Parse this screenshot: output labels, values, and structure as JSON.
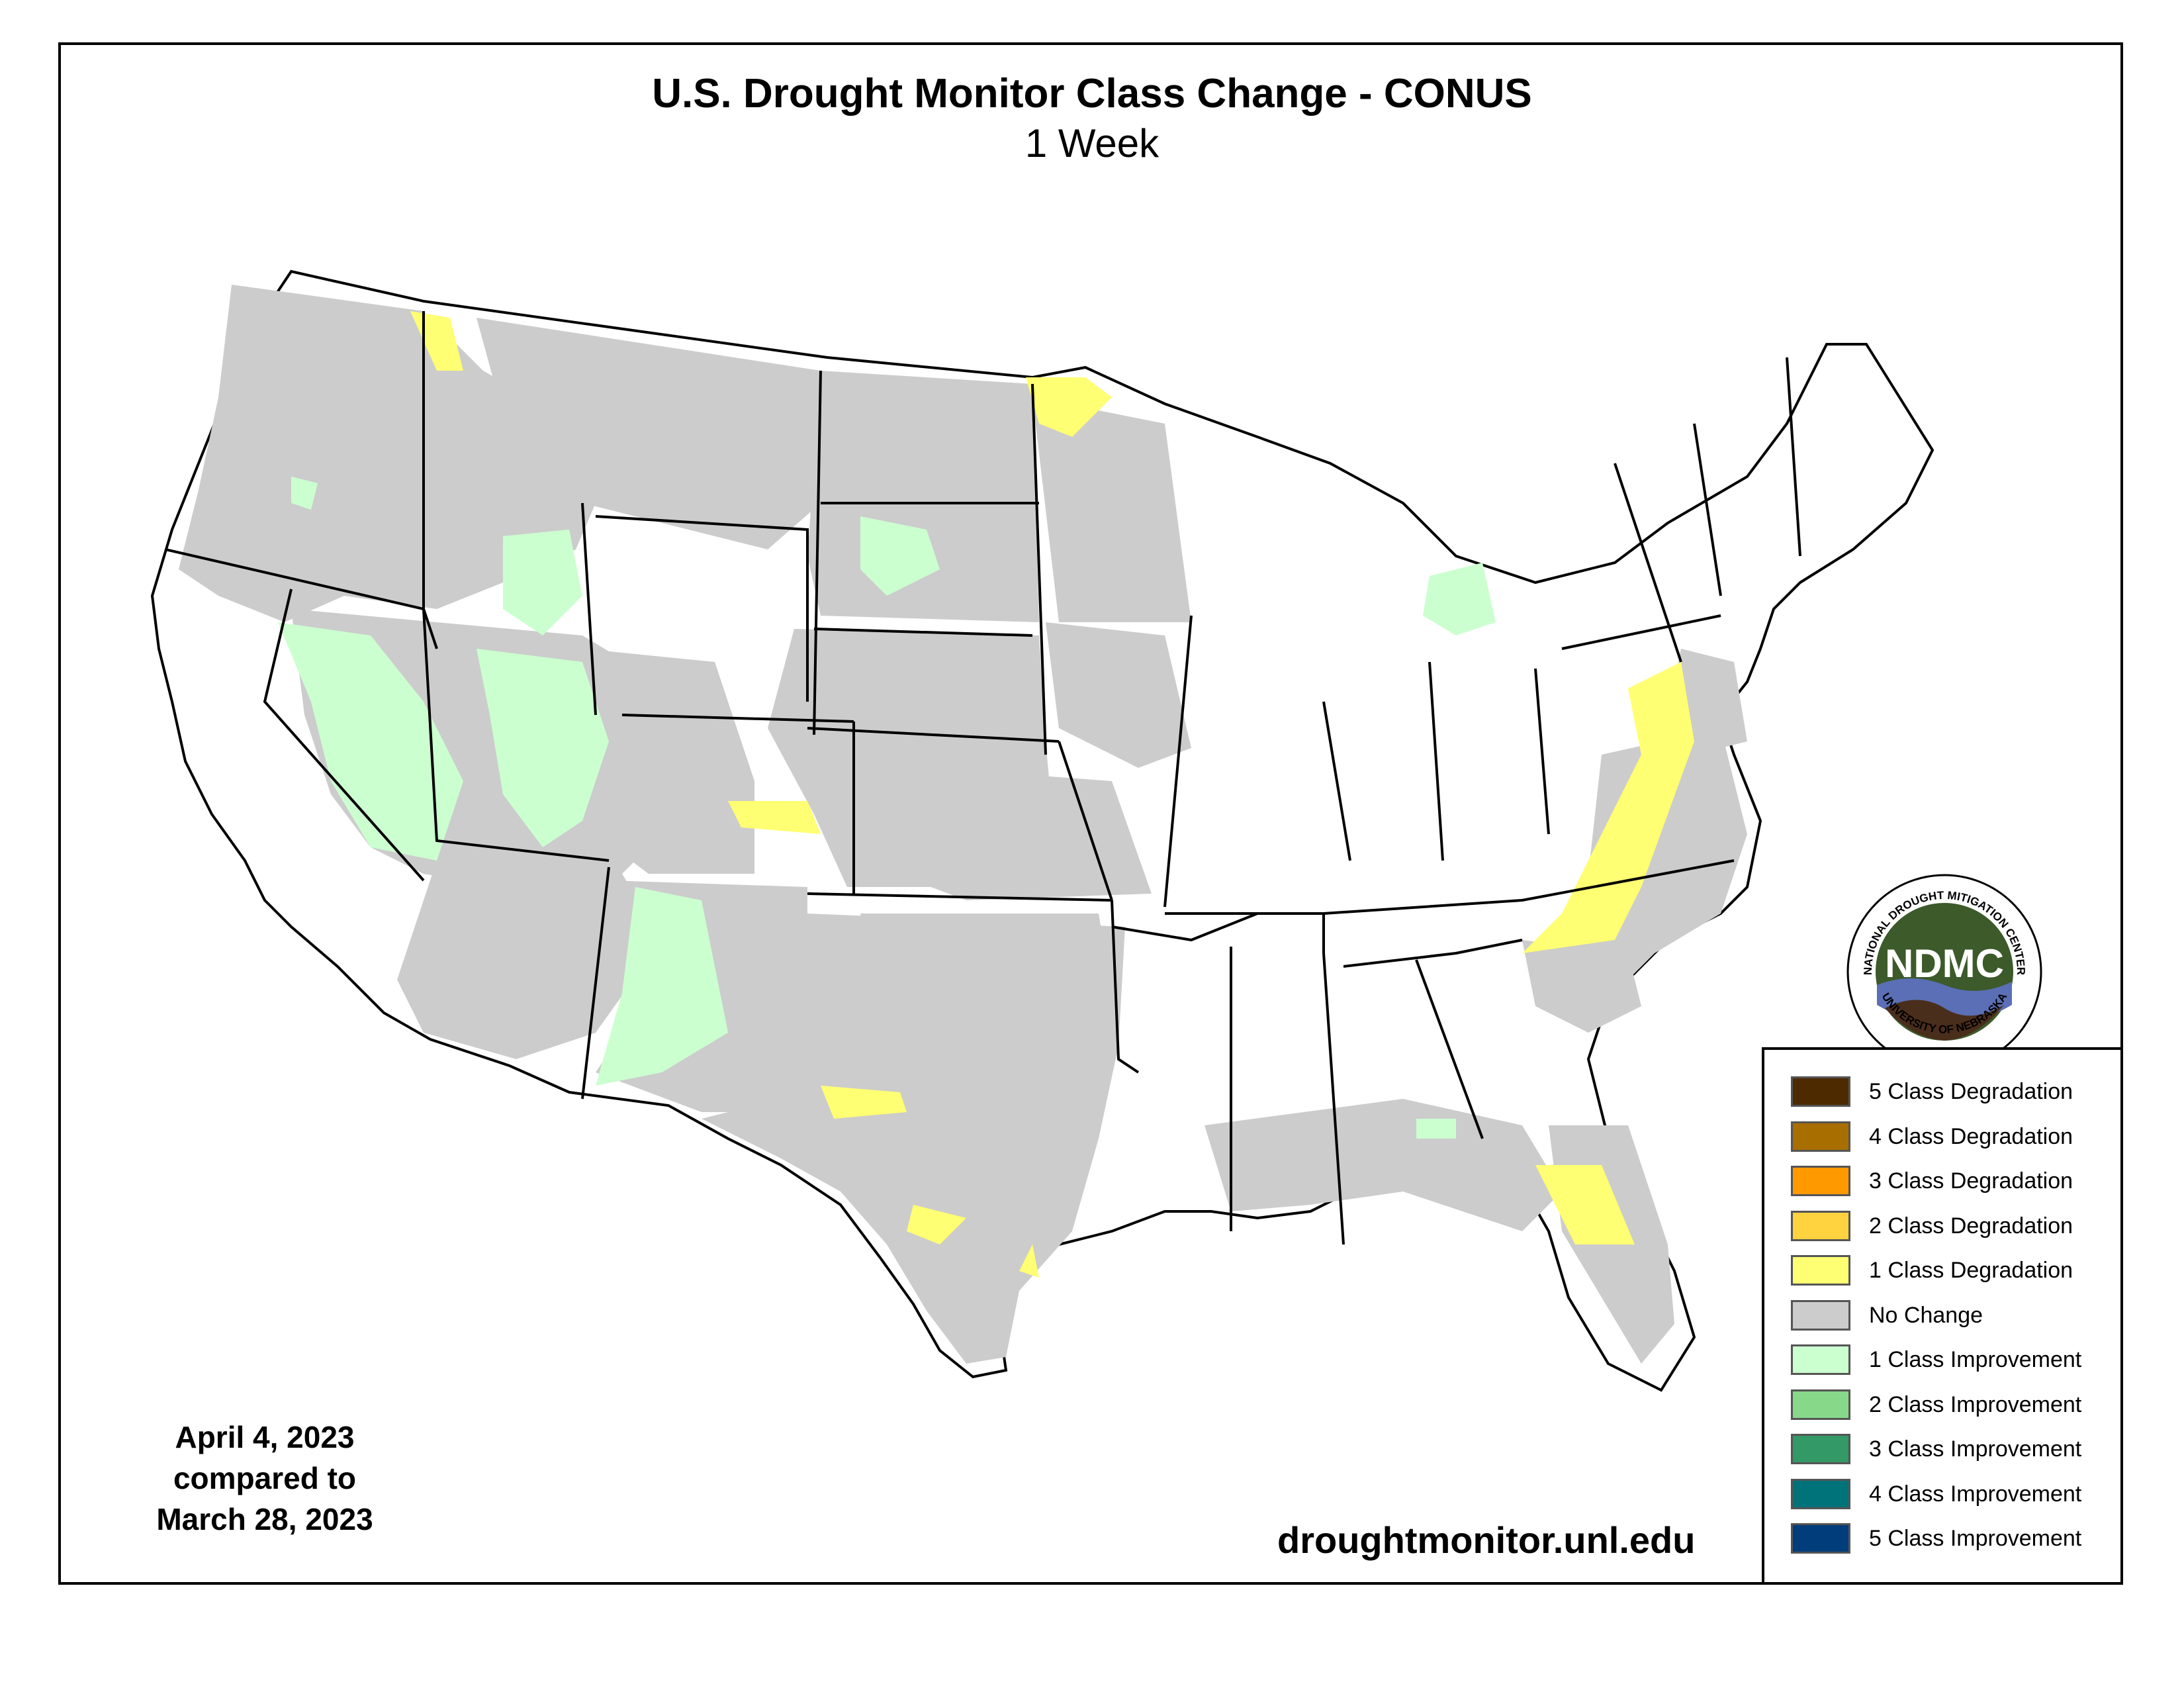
{
  "header": {
    "title": "U.S. Drought Monitor Class Change - CONUS",
    "subtitle": "1 Week"
  },
  "dates": {
    "line1": "April 4, 2023",
    "line2": "compared to",
    "line3": "March 28, 2023"
  },
  "footer": {
    "url": "droughtmonitor.unl.edu"
  },
  "logo": {
    "ring_top": "NATIONAL DROUGHT MITIGATION CENTER",
    "ring_bottom": "UNIVERSITY OF NEBRASKA",
    "center": "NDMC",
    "colors": {
      "green": "#3c5a2a",
      "blue": "#5a6fb5",
      "brown": "#4a2e1c"
    }
  },
  "legend": [
    {
      "label": "5 Class Degradation",
      "color": "#4d2a00"
    },
    {
      "label": "4 Class Degradation",
      "color": "#a86e00"
    },
    {
      "label": "3 Class Degradation",
      "color": "#ff9900"
    },
    {
      "label": "2 Class Degradation",
      "color": "#ffd23f"
    },
    {
      "label": "1 Class Degradation",
      "color": "#ffff73"
    },
    {
      "label": "No Change",
      "color": "#cccccc"
    },
    {
      "label": "1 Class Improvement",
      "color": "#ccffd0"
    },
    {
      "label": "2 Class Improvement",
      "color": "#88d88a"
    },
    {
      "label": "3 Class Improvement",
      "color": "#339966"
    },
    {
      "label": "4 Class Improvement",
      "color": "#00727a"
    },
    {
      "label": "5 Class Improvement",
      "color": "#003d7a"
    }
  ],
  "map_colors": {
    "no_change": "#cccccc",
    "improvement_1": "#ccffd0",
    "degradation_1": "#ffff73",
    "degradation_2": "#ffd23f",
    "outline": "#000000"
  }
}
